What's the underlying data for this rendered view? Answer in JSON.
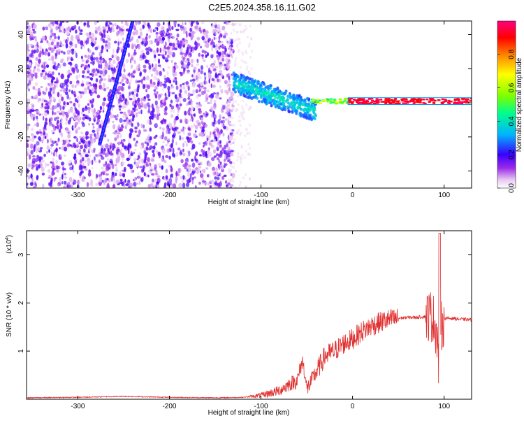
{
  "chart_data": [
    {
      "type": "heatmap",
      "title": "C2E5.2024.358.16.11.G02",
      "xlabel": "Height of straight line (km)",
      "ylabel": "Frequency (Hz)",
      "xlim": [
        -356,
        130
      ],
      "ylim": [
        -50,
        48
      ],
      "xticks": [
        -300,
        -200,
        -100,
        0,
        100
      ],
      "xtick_labels": [
        "-300",
        "-200",
        "-100",
        "0",
        "100"
      ],
      "yticks": [
        -40,
        -20,
        0,
        20,
        40
      ],
      "ytick_labels": [
        "-40",
        "-20",
        "0",
        "20",
        "40"
      ],
      "colorbar": {
        "label": "Normalized spectral amplitude",
        "range": [
          0,
          1
        ],
        "ticks": [
          0.0,
          0.2,
          0.4,
          0.6,
          0.8
        ],
        "tick_labels": [
          "0.0",
          "0.2",
          "0.4",
          "0.6",
          "0.8"
        ],
        "colors": [
          "#ffffff",
          "#e8c8f0",
          "#9b2bea",
          "#3a00ff",
          "#00b4ff",
          "#00ff8c",
          "#7cff00",
          "#ffff00",
          "#ff8000",
          "#ff0000",
          "#ff0080"
        ]
      },
      "features": [
        {
          "kind": "diagonal_streak",
          "x": [
            -276,
            -240
          ],
          "y": [
            -24,
            48
          ],
          "amplitude": 0.25
        },
        {
          "kind": "horizontal_band",
          "x": [
            -5,
            130
          ],
          "y": 1,
          "amplitude": 0.95
        },
        {
          "kind": "descending_band",
          "x": [
            -130,
            -40
          ],
          "y": [
            12,
            -5
          ],
          "amplitude": 0.3
        }
      ]
    },
    {
      "type": "line",
      "title": "",
      "xlabel": "Height of straight line (km)",
      "ylabel": "SNR (10 * v/v)",
      "y_multiplier_label": "(x10",
      "y_multiplier_exp": "4",
      "y_multiplier_close": ")",
      "xlim": [
        -356,
        130
      ],
      "ylim": [
        0,
        3.5
      ],
      "xticks": [
        -300,
        -200,
        -100,
        0,
        100
      ],
      "xtick_labels": [
        "-300",
        "-200",
        "-100",
        "0",
        "100"
      ],
      "yticks": [
        1,
        2,
        3
      ],
      "ytick_labels": [
        "1",
        "2",
        "3"
      ],
      "series": [
        {
          "color": "#e03030",
          "x": [
            -356,
            -300,
            -250,
            -200,
            -150,
            -120,
            -100,
            -80,
            -70,
            -60,
            -55,
            -52,
            -50,
            -40,
            -30,
            -20,
            -10,
            0,
            10,
            20,
            30,
            40,
            50,
            60,
            70,
            80,
            85,
            90,
            93,
            95,
            97,
            100,
            110,
            120,
            130
          ],
          "y": [
            0.03,
            0.04,
            0.06,
            0.04,
            0.03,
            0.04,
            0.08,
            0.18,
            0.3,
            0.4,
            0.8,
            0.55,
            0.2,
            0.55,
            0.9,
            1.0,
            1.15,
            1.25,
            1.4,
            1.52,
            1.6,
            1.65,
            1.68,
            1.7,
            1.7,
            1.72,
            1.75,
            1.6,
            1.2,
            0.2,
            1.5,
            1.68,
            1.68,
            1.66,
            1.65
          ]
        }
      ]
    }
  ]
}
